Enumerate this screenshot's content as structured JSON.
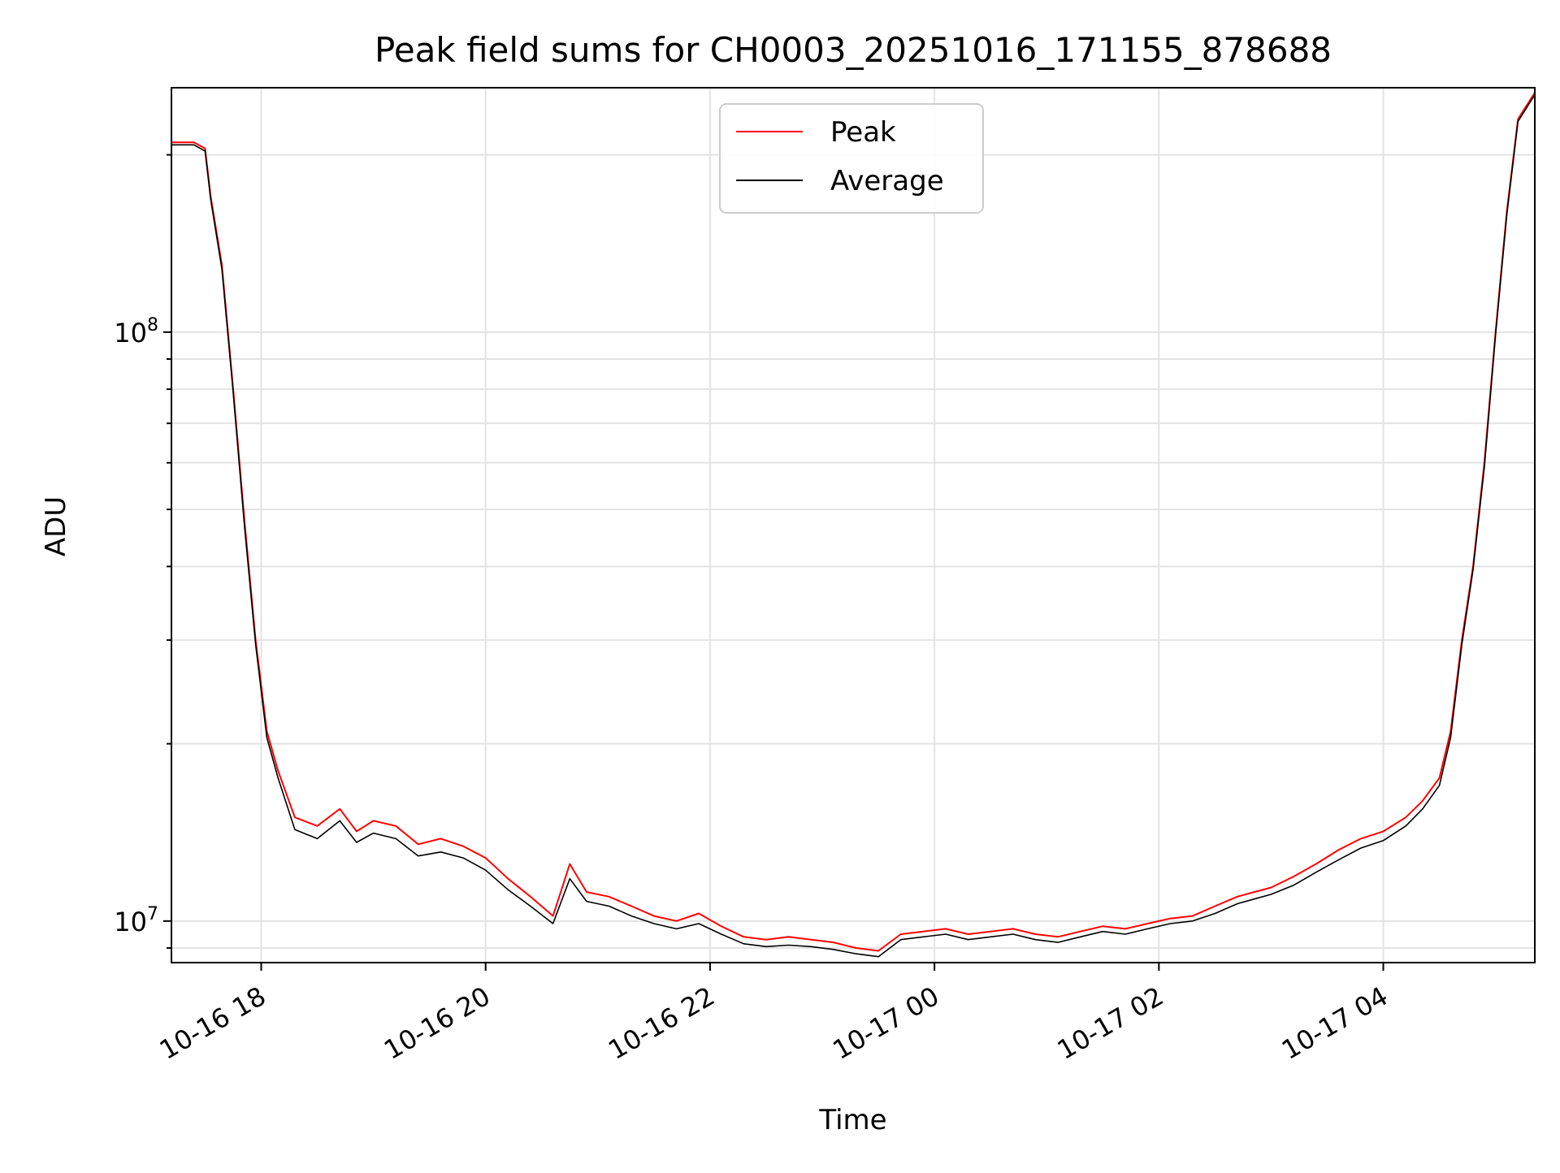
{
  "chart_data": {
    "type": "line",
    "title": "Peak field sums for CH0003_20251016_171155_878688",
    "xlabel": "Time",
    "ylabel": "ADU",
    "yscale": "log",
    "ylim": [
      8500000,
      260000000
    ],
    "xlim_hours": [
      -0.8,
      11.35
    ],
    "xtick_labels": [
      "10-16 18",
      "10-16 20",
      "10-16 22",
      "10-17 00",
      "10-17 02",
      "10-17 04"
    ],
    "xtick_hours": [
      0,
      2,
      4,
      6,
      8,
      10
    ],
    "ytick_labels": [
      {
        "base": "10",
        "exp": "7",
        "value": 10000000
      },
      {
        "base": "10",
        "exp": "8",
        "value": 100000000
      }
    ],
    "grid": true,
    "legend": {
      "position": "top-center"
    },
    "series": [
      {
        "name": "Peak",
        "color": "#ff0000",
        "x_hours": [
          -0.8,
          -0.6,
          -0.5,
          -0.45,
          -0.35,
          -0.25,
          -0.15,
          -0.05,
          0.05,
          0.15,
          0.3,
          0.5,
          0.7,
          0.85,
          1.0,
          1.2,
          1.4,
          1.6,
          1.8,
          2.0,
          2.2,
          2.4,
          2.6,
          2.75,
          2.9,
          3.1,
          3.3,
          3.5,
          3.7,
          3.9,
          4.1,
          4.3,
          4.5,
          4.7,
          4.9,
          5.1,
          5.3,
          5.5,
          5.7,
          5.9,
          6.1,
          6.3,
          6.5,
          6.7,
          6.9,
          7.1,
          7.3,
          7.5,
          7.7,
          7.9,
          8.1,
          8.3,
          8.5,
          8.7,
          8.85,
          9.0,
          9.2,
          9.4,
          9.6,
          9.8,
          10.0,
          10.2,
          10.35,
          10.5,
          10.6,
          10.7,
          10.8,
          10.9,
          11.0,
          11.1,
          11.2,
          11.35
        ],
        "values": [
          210000000,
          210000000,
          205000000,
          170000000,
          130000000,
          80000000,
          48000000,
          30000000,
          21000000,
          18000000,
          15000000,
          14500000,
          15500000,
          14200000,
          14800000,
          14500000,
          13500000,
          13800000,
          13400000,
          12800000,
          11800000,
          11000000,
          10200000,
          12500000,
          11200000,
          11000000,
          10600000,
          10200000,
          10000000,
          10300000,
          9800000,
          9400000,
          9300000,
          9400000,
          9300000,
          9200000,
          9000000,
          8900000,
          9500000,
          9600000,
          9700000,
          9500000,
          9600000,
          9700000,
          9500000,
          9400000,
          9600000,
          9800000,
          9700000,
          9900000,
          10100000,
          10200000,
          10600000,
          11000000,
          11200000,
          11400000,
          11900000,
          12500000,
          13200000,
          13800000,
          14200000,
          15000000,
          16000000,
          17500000,
          21000000,
          30000000,
          40000000,
          60000000,
          100000000,
          160000000,
          230000000,
          255000000
        ]
      },
      {
        "name": "Average",
        "color": "#000000",
        "x_hours": [
          -0.8,
          -0.6,
          -0.5,
          -0.45,
          -0.35,
          -0.25,
          -0.15,
          -0.05,
          0.05,
          0.15,
          0.3,
          0.5,
          0.7,
          0.85,
          1.0,
          1.2,
          1.4,
          1.6,
          1.8,
          2.0,
          2.2,
          2.4,
          2.6,
          2.75,
          2.9,
          3.1,
          3.3,
          3.5,
          3.7,
          3.9,
          4.1,
          4.3,
          4.5,
          4.7,
          4.9,
          5.1,
          5.3,
          5.5,
          5.7,
          5.9,
          6.1,
          6.3,
          6.5,
          6.7,
          6.9,
          7.1,
          7.3,
          7.5,
          7.7,
          7.9,
          8.1,
          8.3,
          8.5,
          8.7,
          8.85,
          9.0,
          9.2,
          9.4,
          9.6,
          9.8,
          10.0,
          10.2,
          10.35,
          10.5,
          10.6,
          10.7,
          10.8,
          10.9,
          11.0,
          11.1,
          11.2,
          11.35
        ],
        "values": [
          208000000,
          208000000,
          203000000,
          168000000,
          128000000,
          79000000,
          47000000,
          29500000,
          20500000,
          17500000,
          14300000,
          13800000,
          14800000,
          13600000,
          14100000,
          13800000,
          12900000,
          13100000,
          12800000,
          12200000,
          11300000,
          10600000,
          9900000,
          11800000,
          10800000,
          10600000,
          10200000,
          9900000,
          9700000,
          9900000,
          9500000,
          9150000,
          9050000,
          9100000,
          9050000,
          8950000,
          8800000,
          8700000,
          9300000,
          9400000,
          9500000,
          9300000,
          9400000,
          9500000,
          9300000,
          9200000,
          9400000,
          9600000,
          9500000,
          9700000,
          9900000,
          10000000,
          10300000,
          10700000,
          10900000,
          11100000,
          11500000,
          12100000,
          12700000,
          13300000,
          13700000,
          14500000,
          15500000,
          17000000,
          20500000,
          29500000,
          39500000,
          59000000,
          99000000,
          158000000,
          228000000,
          253000000
        ]
      }
    ]
  }
}
